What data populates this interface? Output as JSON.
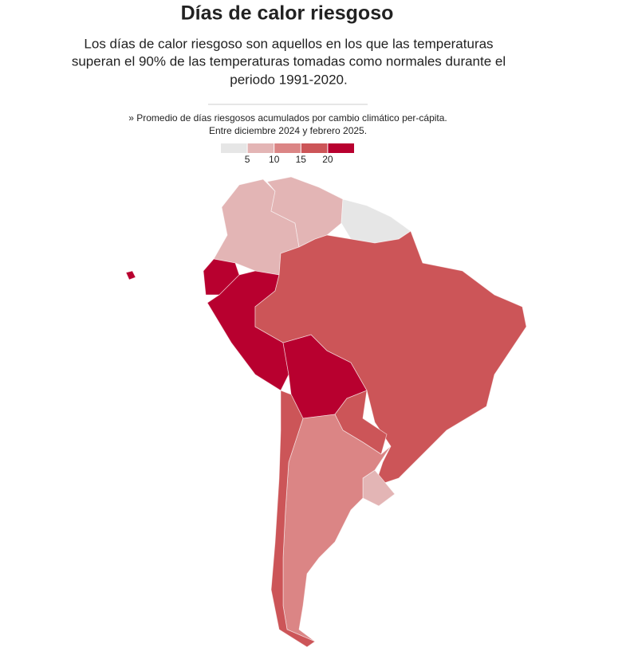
{
  "title": "Días de calor riesgoso",
  "subtitle": [
    "Los días de calor riesgoso son aquellos en los que las temperaturas",
    "superan el 90% de las temperaturas tomadas como normales durante el",
    "periodo 1991-2020."
  ],
  "note": [
    "» Promedio de días riesgosos acumulados por cambio climático per-cápita.",
    "Entre diciembre 2024 y febrero 2025."
  ],
  "legend": {
    "colors": [
      "#e6e6e6",
      "#e3b5b5",
      "#db8585",
      "#cc5558",
      "#b8002f"
    ],
    "ticks": [
      5,
      10,
      15,
      20
    ]
  }
}
